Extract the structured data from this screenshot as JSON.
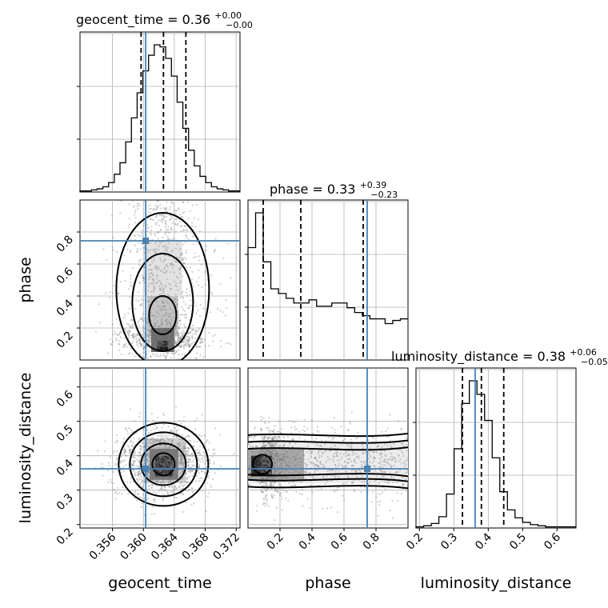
{
  "chart_data": {
    "type": "corner",
    "parameters": [
      "geocent_time",
      "phase",
      "luminosity_distance"
    ],
    "titles": [
      {
        "param": "geocent_time",
        "prefix": "geocent_time = ",
        "median": "0.36",
        "plus": "+0.00",
        "minus": "−0.00"
      },
      {
        "param": "phase",
        "prefix": "phase = ",
        "median": "0.33",
        "plus": "+0.39",
        "minus": "−0.23"
      },
      {
        "param": "luminosity_distance",
        "prefix": "luminosity_distance = ",
        "median": "0.38",
        "plus": "+0.06",
        "minus": "−0.05"
      }
    ],
    "truths": {
      "geocent_time": 0.3603,
      "phase": 0.745,
      "luminosity_distance": 0.362
    },
    "colors": {
      "truth": "#4682b4",
      "hist": "#000000",
      "grid": "#b0b0b0"
    },
    "ranges": {
      "geocent_time": [
        0.3518,
        0.3725
      ],
      "phase": [
        0.0,
        1.0
      ],
      "luminosity_distance": [
        0.19,
        0.655
      ]
    },
    "xticks": {
      "geocent_time": [
        "0.356",
        "0.360",
        "0.364",
        "0.368",
        "0.372"
      ],
      "phase": [
        "0.2",
        "0.4",
        "0.6",
        "0.8"
      ],
      "luminosity_distance": [
        "0.2",
        "0.3",
        "0.4",
        "0.5",
        "0.6"
      ]
    },
    "yticks": {
      "phase": [
        "0.2",
        "0.4",
        "0.6",
        "0.8"
      ],
      "luminosity_distance": [
        "0.2",
        "0.3",
        "0.4",
        "0.5",
        "0.6"
      ]
    },
    "quantiles": {
      "geocent_time": [
        0.3597,
        0.3626,
        0.3655
      ],
      "phase": [
        0.095,
        0.33,
        0.72
      ],
      "luminosity_distance": [
        0.325,
        0.38,
        0.445
      ]
    },
    "histograms": {
      "geocent_time": [
        1,
        1,
        2,
        3,
        5,
        9,
        17,
        28,
        48,
        71,
        95,
        116,
        131,
        141,
        139,
        128,
        111,
        86,
        61,
        40,
        25,
        15,
        9,
        5,
        3,
        2,
        1,
        1
      ],
      "phase": [
        71,
        93,
        62,
        45,
        42,
        39,
        36,
        36,
        38,
        34,
        34,
        36,
        36,
        33,
        30,
        28,
        26,
        26,
        23,
        25,
        26
      ],
      "luminosity_distance": [
        1,
        2,
        4,
        10,
        30,
        70,
        110,
        130,
        118,
        95,
        62,
        32,
        16,
        9,
        5,
        3,
        2,
        1,
        1,
        1,
        1
      ]
    },
    "grid": true,
    "grid_style": "gray",
    "density_style": "grayscale scatter with contours"
  },
  "labels": {
    "x": [
      "geocent_time",
      "phase",
      "luminosity_distance"
    ],
    "y": [
      "phase",
      "luminosity_distance"
    ]
  }
}
